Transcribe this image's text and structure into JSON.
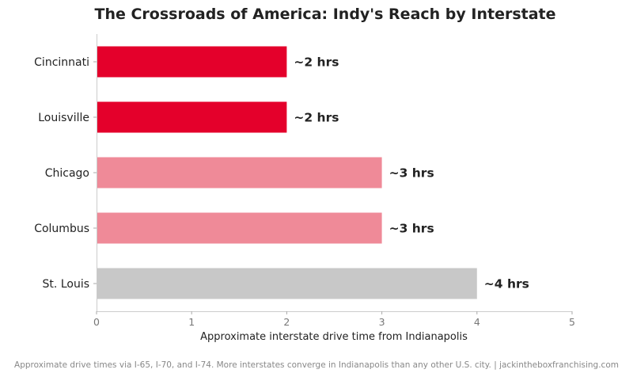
{
  "chart_data": {
    "type": "bar",
    "orientation": "horizontal",
    "title": "The Crossroads of America: Indy's Reach by Interstate",
    "xlabel": "Approximate interstate drive time from Indianapolis",
    "ylabel": "",
    "xlim": [
      0,
      5
    ],
    "xticks": [
      0,
      1,
      2,
      3,
      4,
      5
    ],
    "grid": false,
    "categories": [
      "Cincinnati",
      "Louisville",
      "Chicago",
      "Columbus",
      "St. Louis"
    ],
    "values": [
      2,
      2,
      3,
      3,
      4
    ],
    "data_labels": [
      "~2 hrs",
      "~2 hrs",
      "~3 hrs",
      "~3 hrs",
      "~4 hrs"
    ],
    "colors": [
      "#e4002b",
      "#e4002b",
      "#ef8a98",
      "#ef8a98",
      "#c8c8c8"
    ],
    "footnote": "Approximate drive times via I-65, I-70, and I-74. More interstates converge in Indianapolis than any other U.S. city.  |  jackintheboxfranchising.com"
  }
}
